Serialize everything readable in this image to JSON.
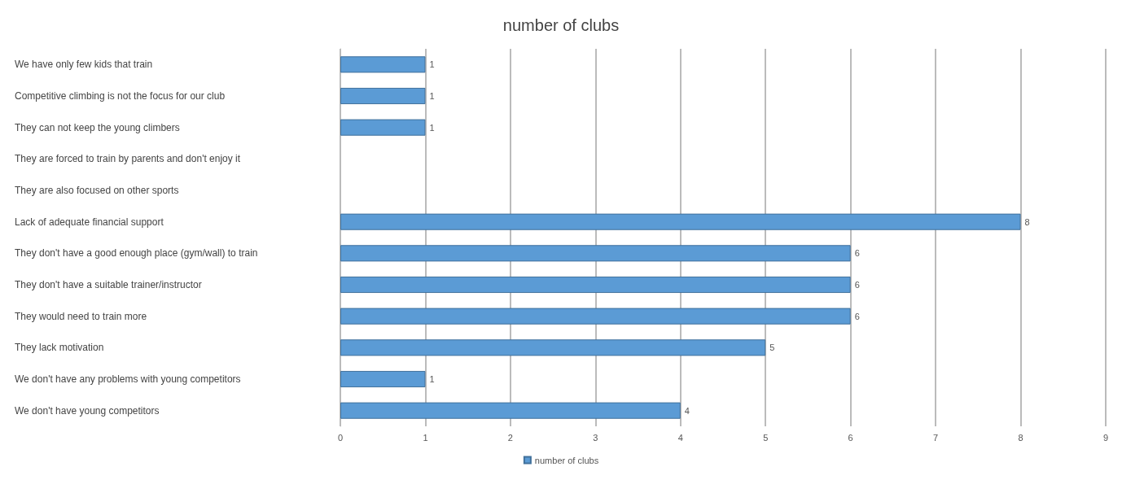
{
  "chart_data": {
    "type": "bar",
    "orientation": "horizontal",
    "title": "number of clubs",
    "categories": [
      "We have only few kids that train",
      "Competitive climbing is not the focus for our club",
      "They can not keep the young climbers",
      "They are forced to train by parents and don't enjoy it",
      "They are also focused on other sports",
      "Lack of adequate financial support",
      "They don't have a good enough place (gym/wall) to train",
      "They don't have a suitable trainer/instructor",
      "They would need to train more",
      "They lack motivation",
      "We don't have any problems with young competitors",
      "We don't have young competitors"
    ],
    "series": [
      {
        "name": "number of clubs",
        "color": "#5b9bd5",
        "values": [
          1,
          1,
          1,
          null,
          null,
          8,
          6,
          6,
          6,
          5,
          1,
          4
        ]
      }
    ],
    "xlim": [
      0,
      9
    ],
    "xticks": [
      0,
      1,
      2,
      3,
      4,
      5,
      6,
      7,
      8,
      9
    ],
    "grid": "x",
    "legend": "bottom",
    "data_labels": true
  }
}
